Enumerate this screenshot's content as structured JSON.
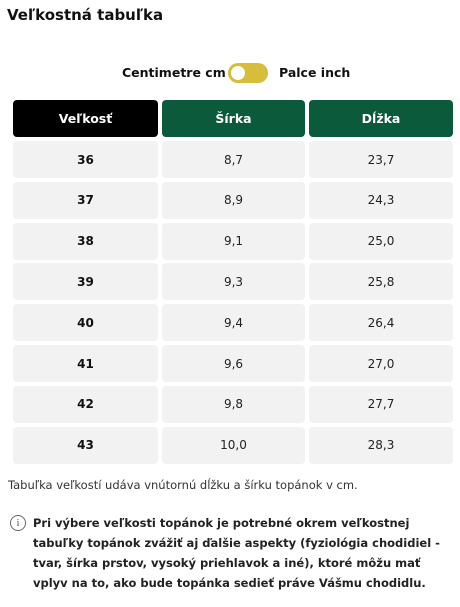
{
  "title": "Veľkostná tabuľka",
  "unit_toggle": {
    "left_label": "Centimetre cm",
    "right_label": "Palce inch",
    "accent_color": "#d6bd3b"
  },
  "table": {
    "headers": [
      "Veľkosť",
      "Šírka",
      "Dĺžka"
    ],
    "header_colors": [
      "#000000",
      "#0b5a3c",
      "#0b5a3c"
    ],
    "rows": [
      [
        "36",
        "8,7",
        "23,7"
      ],
      [
        "37",
        "8,9",
        "24,3"
      ],
      [
        "38",
        "9,1",
        "25,0"
      ],
      [
        "39",
        "9,3",
        "25,8"
      ],
      [
        "40",
        "9,4",
        "26,4"
      ],
      [
        "41",
        "9,6",
        "27,0"
      ],
      [
        "42",
        "9,8",
        "27,7"
      ],
      [
        "43",
        "10,0",
        "28,3"
      ]
    ]
  },
  "note": "Tabuľka veľkostí udáva vnútornú dĺžku a šírku topánok v cm.",
  "info": {
    "icon": "info-icon",
    "text": "Pri výbere veľkosti topánok je potrebné okrem veľkostnej tabuľky topánok zvážiť aj ďalšie aspekty (fyziológia chodidiel - tvar, šírka prstov, vysoký priehlavok a iné), ktoré môžu mať vplyv na to, ako bude topánka sedieť práve Vášmu chodidlu."
  }
}
